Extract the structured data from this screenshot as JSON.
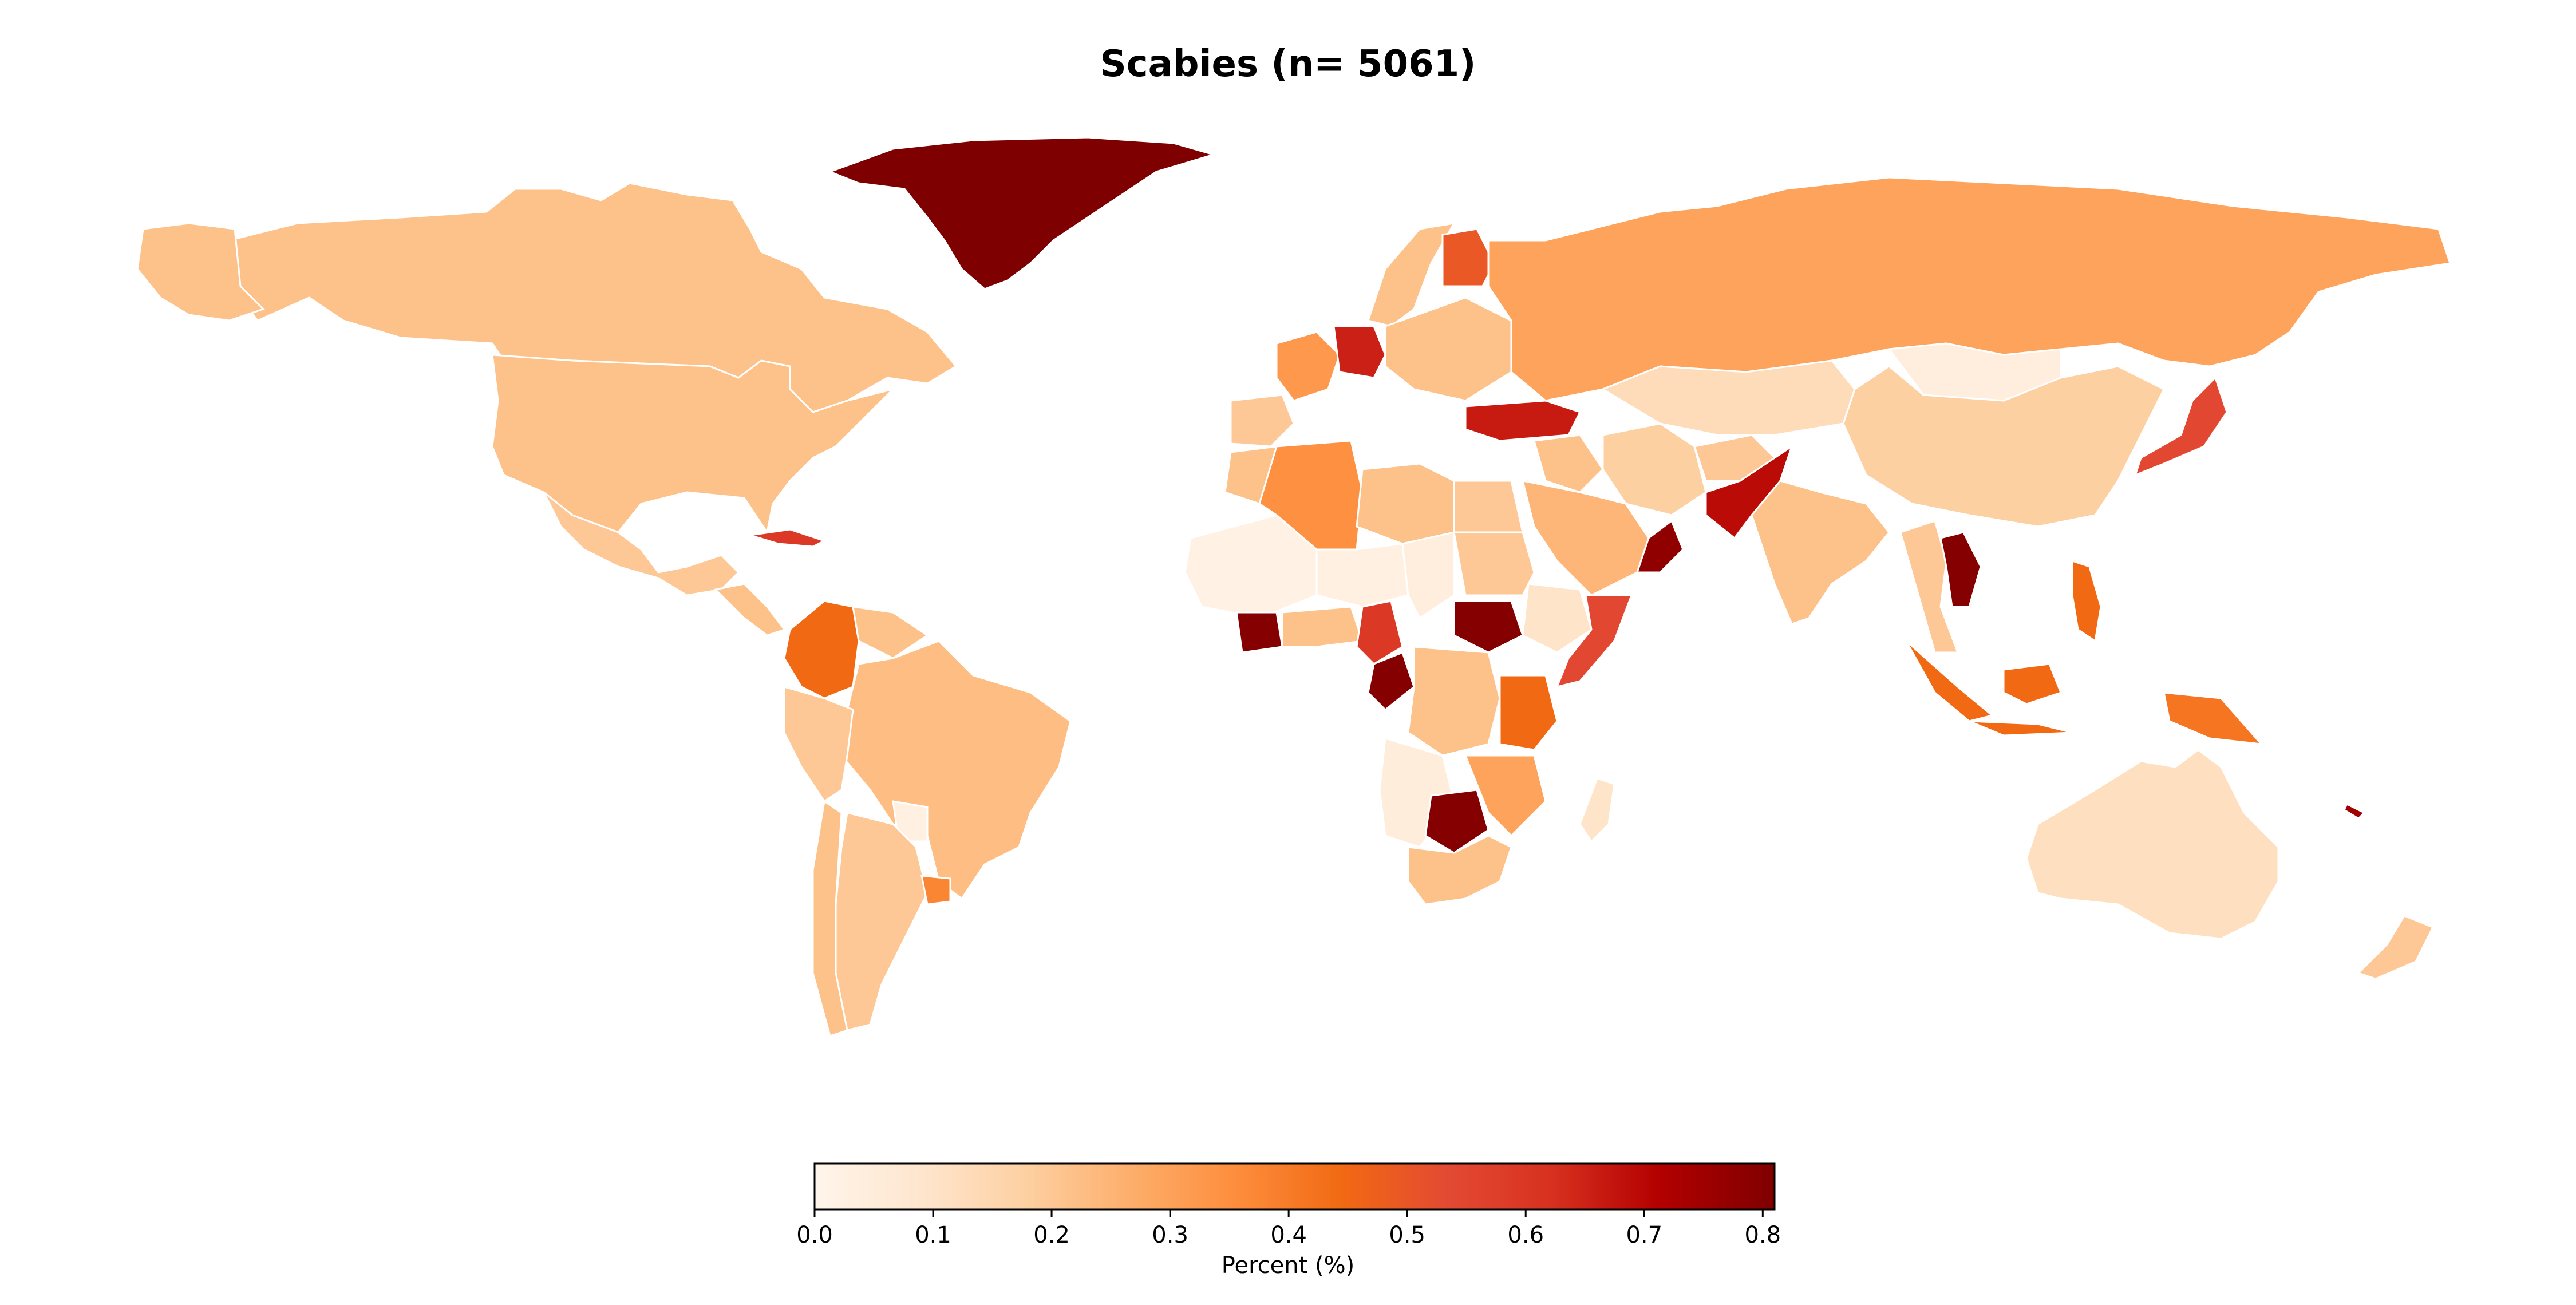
{
  "title": "Scabies (n= 5061)",
  "colorbar": {
    "label": "Percent (%)",
    "min": 0.0,
    "max": 0.81,
    "ticks": [
      "0.0",
      "0.1",
      "0.2",
      "0.3",
      "0.4",
      "0.5",
      "0.6",
      "0.7",
      "0.8"
    ],
    "tick_values": [
      0.0,
      0.1,
      0.2,
      0.3,
      0.4,
      0.5,
      0.6,
      0.7,
      0.8
    ],
    "colormap": [
      "#fff5eb",
      "#fee6ce",
      "#fdd0a2",
      "#fdae6b",
      "#fd8d3c",
      "#f16913",
      "#e34a33",
      "#d7301f",
      "#b30000",
      "#7f0000"
    ]
  },
  "countries": [
    {
      "name": "Greenland",
      "value": 0.81
    },
    {
      "name": "Canada",
      "value": 0.22
    },
    {
      "name": "United States",
      "value": 0.22
    },
    {
      "name": "Mexico",
      "value": 0.2
    },
    {
      "name": "Cuba",
      "value": 0.6
    },
    {
      "name": "Colombia",
      "value": 0.45
    },
    {
      "name": "Brazil",
      "value": 0.23
    },
    {
      "name": "Peru",
      "value": 0.2
    },
    {
      "name": "Argentina",
      "value": 0.2
    },
    {
      "name": "Chile",
      "value": 0.22
    },
    {
      "name": "Uruguay",
      "value": 0.38
    },
    {
      "name": "Paraguay",
      "value": 0.03
    },
    {
      "name": "Russia",
      "value": 0.3
    },
    {
      "name": "Kazakhstan",
      "value": 0.13
    },
    {
      "name": "Mongolia",
      "value": 0.04
    },
    {
      "name": "China",
      "value": 0.18
    },
    {
      "name": "Japan",
      "value": 0.55
    },
    {
      "name": "India",
      "value": 0.22
    },
    {
      "name": "Pakistan",
      "value": 0.7
    },
    {
      "name": "Afghanistan",
      "value": 0.2
    },
    {
      "name": "Iran",
      "value": 0.18
    },
    {
      "name": "Saudi Arabia",
      "value": 0.25
    },
    {
      "name": "Oman",
      "value": 0.78
    },
    {
      "name": "Turkey",
      "value": 0.67
    },
    {
      "name": "Finland",
      "value": 0.5
    },
    {
      "name": "Germany",
      "value": 0.66
    },
    {
      "name": "France",
      "value": 0.33
    },
    {
      "name": "Spain",
      "value": 0.2
    },
    {
      "name": "Algeria",
      "value": 0.35
    },
    {
      "name": "Libya",
      "value": 0.22
    },
    {
      "name": "Egypt",
      "value": 0.2
    },
    {
      "name": "Mali",
      "value": 0.02
    },
    {
      "name": "Niger",
      "value": 0.03
    },
    {
      "name": "Chad",
      "value": 0.04
    },
    {
      "name": "Sudan",
      "value": 0.2
    },
    {
      "name": "South Sudan",
      "value": 0.8
    },
    {
      "name": "Ethiopia",
      "value": 0.1
    },
    {
      "name": "Somalia",
      "value": 0.55
    },
    {
      "name": "Ivory Coast",
      "value": 0.8
    },
    {
      "name": "Cameroon",
      "value": 0.6
    },
    {
      "name": "Gabon",
      "value": 0.8
    },
    {
      "name": "DR Congo",
      "value": 0.22
    },
    {
      "name": "Tanzania",
      "value": 0.45
    },
    {
      "name": "Angola",
      "value": 0.05
    },
    {
      "name": "Zimbabwe",
      "value": 0.8
    },
    {
      "name": "Mozambique",
      "value": 0.3
    },
    {
      "name": "South Africa",
      "value": 0.22
    },
    {
      "name": "Madagascar",
      "value": 0.1
    },
    {
      "name": "Thailand",
      "value": 0.2
    },
    {
      "name": "Laos",
      "value": 0.8
    },
    {
      "name": "Indonesia",
      "value": 0.45
    },
    {
      "name": "Papua New Guinea",
      "value": 0.42
    },
    {
      "name": "Philippines",
      "value": 0.45
    },
    {
      "name": "Australia",
      "value": 0.12
    },
    {
      "name": "New Zealand",
      "value": 0.2
    },
    {
      "name": "New Caledonia",
      "value": 0.75
    }
  ]
}
